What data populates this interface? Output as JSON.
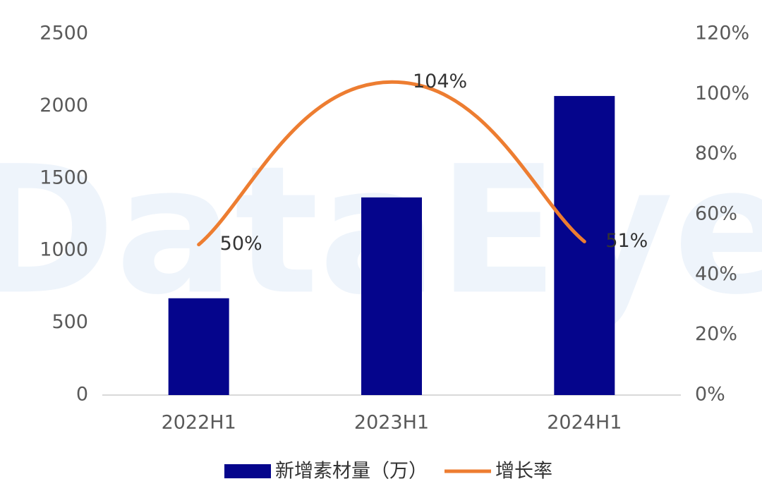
{
  "chart_data": {
    "type": "bar",
    "watermark": "DataEye",
    "categories": [
      "2022H1",
      "2023H1",
      "2024H1"
    ],
    "series": [
      {
        "name": "新增素材量（万）",
        "type": "bar",
        "color": "#05058c",
        "values": [
          670,
          1368,
          2070
        ]
      },
      {
        "name": "增长率",
        "type": "line",
        "axis": "y2",
        "color": "#ed7d31",
        "values": [
          50,
          104,
          51
        ],
        "value_labels": [
          "50%",
          "104%",
          "51%"
        ]
      }
    ],
    "ylim": [
      0,
      2500
    ],
    "yticks": [
      0,
      500,
      1000,
      1500,
      2000,
      2500
    ],
    "y2lim": [
      0,
      120
    ],
    "y2ticks": [
      {
        "value": 0,
        "label": "0%"
      },
      {
        "value": 20,
        "label": "20%"
      },
      {
        "value": 40,
        "label": "40%"
      },
      {
        "value": 60,
        "label": "60%"
      },
      {
        "value": 80,
        "label": "80%"
      },
      {
        "value": 100,
        "label": "100%"
      },
      {
        "value": 120,
        "label": "120%"
      }
    ],
    "legend": "bottom"
  }
}
